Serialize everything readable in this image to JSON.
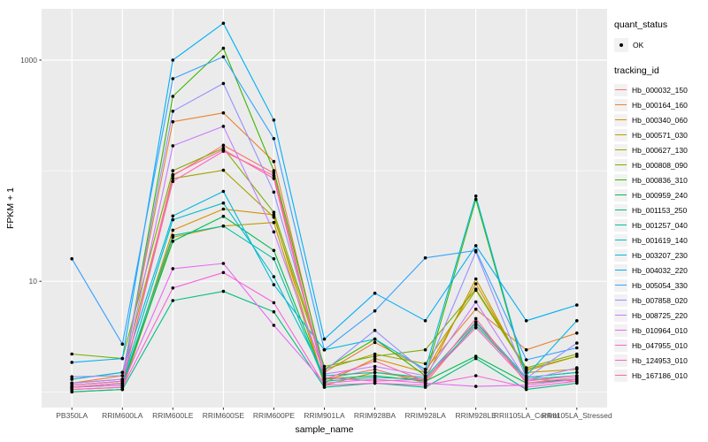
{
  "chart_data": {
    "type": "line",
    "title": "",
    "xlabel": "sample_name",
    "ylabel": "FPKM + 1",
    "y_axis": {
      "scale": "log10",
      "major_breaks": [
        10,
        1000
      ],
      "major_break_labels": [
        "10",
        "1000"
      ],
      "minor_breaks": [
        1,
        100
      ],
      "range_approx": [
        0.75,
        2900
      ]
    },
    "grid": {
      "panel_bg": "#EBEBEB",
      "gridline_color": "#FFFFFF",
      "legend_key_bg": "#F2F2F2"
    },
    "point_color": "#000000",
    "categories": [
      "PB350LA",
      "RRIM600LA",
      "RRIM600LE",
      "RRIM600SE",
      "RRIM600PE",
      "RRIM901LA",
      "RRIM928BA",
      "RRIM928LA",
      "RRIM928LE",
      "RRII105LA_Control",
      "RRII105LA_Stressed"
    ],
    "series": [
      {
        "name": "Hb_000032_150",
        "color": "#F8766D",
        "values": [
          1.1,
          1.2,
          90,
          170,
          95,
          1.3,
          1.6,
          1.2,
          4.2,
          1.3,
          1.25
        ]
      },
      {
        "name": "Hb_000164_160",
        "color": "#EA8331",
        "values": [
          1.2,
          1.4,
          277,
          333,
          121,
          1.5,
          2.8,
          1.6,
          5.6,
          2.4,
          3.4
        ]
      },
      {
        "name": "Hb_000340_060",
        "color": "#D89000",
        "values": [
          1.05,
          1.1,
          29,
          45,
          40,
          1.2,
          2.0,
          1.5,
          9.5,
          1.55,
          2.1
        ]
      },
      {
        "name": "Hb_000571_030",
        "color": "#C09B00",
        "values": [
          1.0,
          1.05,
          25,
          31.6,
          34,
          1.15,
          1.5,
          1.3,
          10.5,
          1.5,
          1.6
        ]
      },
      {
        "name": "Hb_000627_130",
        "color": "#A3A500",
        "values": [
          1.3,
          1.5,
          85,
          101,
          38,
          1.6,
          2.2,
          1.8,
          8.3,
          1.6,
          2.1
        ]
      },
      {
        "name": "Hb_000808_090",
        "color": "#7CAE00",
        "values": [
          2.2,
          2.0,
          100,
          160,
          42,
          1.7,
          2.1,
          2.4,
          8.5,
          1.65,
          2.2
        ]
      },
      {
        "name": "Hb_000836_310",
        "color": "#39B600",
        "values": [
          1.2,
          1.3,
          470,
          1280,
          100,
          1.6,
          3.0,
          1.4,
          55,
          1.35,
          1.5
        ]
      },
      {
        "name": "Hb_000959_240",
        "color": "#00BB4E",
        "values": [
          1.1,
          1.15,
          23,
          38.7,
          19,
          1.3,
          1.4,
          1.25,
          2.1,
          1.2,
          1.3
        ]
      },
      {
        "name": "Hb_001153_250",
        "color": "#00BF7D",
        "values": [
          1.0,
          1.05,
          6.7,
          8.1,
          5.3,
          1.1,
          1.2,
          1.1,
          2.0,
          1.05,
          1.2
        ]
      },
      {
        "name": "Hb_001257_040",
        "color": "#00C1A3",
        "values": [
          1.1,
          1.2,
          26,
          31.6,
          16,
          1.25,
          1.35,
          1.3,
          4.0,
          1.3,
          1.4
        ]
      },
      {
        "name": "Hb_001619_140",
        "color": "#00BFC4",
        "values": [
          1.15,
          1.25,
          36,
          51,
          11,
          1.4,
          1.5,
          1.35,
          4.3,
          1.35,
          1.5
        ]
      },
      {
        "name": "Hb_003207_230",
        "color": "#00BAE0",
        "values": [
          1.3,
          1.5,
          39,
          65,
          9.3,
          2.4,
          3.0,
          1.6,
          59,
          1.4,
          4.4
        ]
      },
      {
        "name": "Hb_004032_220",
        "color": "#00B0F6",
        "values": [
          1.85,
          2.0,
          1000,
          2155,
          287,
          3.0,
          7.8,
          4.4,
          21,
          4.4,
          6.1
        ]
      },
      {
        "name": "Hb_005054_330",
        "color": "#35A2FF",
        "values": [
          16,
          2.7,
          680,
          1070,
          195,
          2.4,
          5.4,
          16.3,
          19,
          1.95,
          2.5
        ]
      },
      {
        "name": "Hb_007858_020",
        "color": "#9590FF",
        "values": [
          1.37,
          1.4,
          345,
          615,
          64,
          1.55,
          3.6,
          1.5,
          18.5,
          1.33,
          2.76
        ]
      },
      {
        "name": "Hb_008725_220",
        "color": "#C77CFF",
        "values": [
          1.2,
          1.3,
          168,
          252,
          28,
          1.45,
          1.7,
          1.4,
          6.5,
          1.28,
          1.65
        ]
      },
      {
        "name": "Hb_010964_010",
        "color": "#E76BF3",
        "values": [
          1.1,
          1.15,
          13,
          14.5,
          4.0,
          1.2,
          1.3,
          1.2,
          1.12,
          1.15,
          1.3
        ]
      },
      {
        "name": "Hb_047955_010",
        "color": "#FA62DB",
        "values": [
          1.05,
          1.1,
          8.7,
          12,
          6.4,
          1.15,
          1.2,
          1.15,
          1.4,
          1.1,
          1.25
        ]
      },
      {
        "name": "Hb_124953_010",
        "color": "#FF62BC",
        "values": [
          1.15,
          1.25,
          80,
          150,
          90,
          1.35,
          1.25,
          1.3,
          3.8,
          1.25,
          1.4
        ]
      },
      {
        "name": "Hb_167186_010",
        "color": "#FF6A98",
        "values": [
          1.1,
          1.2,
          92,
          155,
          85,
          1.3,
          1.9,
          1.25,
          4.6,
          1.2,
          1.35
        ]
      }
    ],
    "legend_position": "right"
  },
  "legend": {
    "quant_status": {
      "title": "quant_status",
      "items": [
        {
          "label": "OK",
          "marker": "point"
        }
      ]
    },
    "tracking_id": {
      "title": "tracking_id"
    }
  }
}
